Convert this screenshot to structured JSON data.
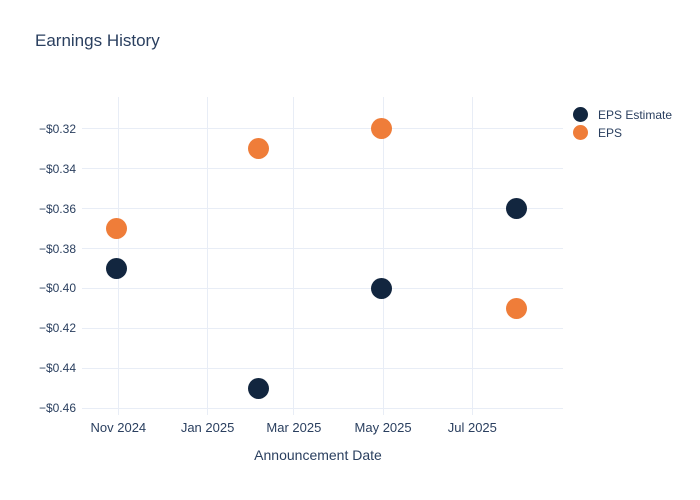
{
  "colors": {
    "background": "#ffffff",
    "text": "#2a3f5f",
    "grid": "#e8edf6",
    "eps_estimate": "#12263f",
    "eps": "#ef7d39"
  },
  "chart_data": {
    "type": "scatter",
    "title": "Earnings History",
    "xlabel": "Announcement Date",
    "ylabel": "",
    "grid": true,
    "legend_position": "right",
    "xlim": [
      "2024-10-01",
      "2025-09-01"
    ],
    "ylim": [
      -0.4605,
      -0.304
    ],
    "x_ticks": [
      {
        "date": "2024-11-01",
        "label": "Nov 2024"
      },
      {
        "date": "2025-01-01",
        "label": "Jan 2025"
      },
      {
        "date": "2025-03-01",
        "label": "Mar 2025"
      },
      {
        "date": "2025-05-01",
        "label": "May 2025"
      },
      {
        "date": "2025-07-01",
        "label": "Jul 2025"
      }
    ],
    "y_ticks": [
      {
        "value": -0.32,
        "label": "−$0.32"
      },
      {
        "value": -0.34,
        "label": "−$0.34"
      },
      {
        "value": -0.36,
        "label": "−$0.36"
      },
      {
        "value": -0.38,
        "label": "−$0.38"
      },
      {
        "value": -0.4,
        "label": "−$0.40"
      },
      {
        "value": -0.42,
        "label": "−$0.42"
      },
      {
        "value": -0.44,
        "label": "−$0.44"
      },
      {
        "value": -0.46,
        "label": "−$0.46"
      }
    ],
    "series": [
      {
        "name": "EPS Estimate",
        "color": "#12263f",
        "points": [
          {
            "x": "2024-10-31",
            "y": -0.39
          },
          {
            "x": "2025-02-05",
            "y": -0.45
          },
          {
            "x": "2025-04-30",
            "y": -0.4
          },
          {
            "x": "2025-07-31",
            "y": -0.36
          }
        ]
      },
      {
        "name": "EPS",
        "color": "#ef7d39",
        "points": [
          {
            "x": "2024-10-31",
            "y": -0.37
          },
          {
            "x": "2025-02-05",
            "y": -0.33
          },
          {
            "x": "2025-04-30",
            "y": -0.32
          },
          {
            "x": "2025-07-31",
            "y": -0.41
          }
        ]
      }
    ],
    "marker_diameter_px": 21
  }
}
